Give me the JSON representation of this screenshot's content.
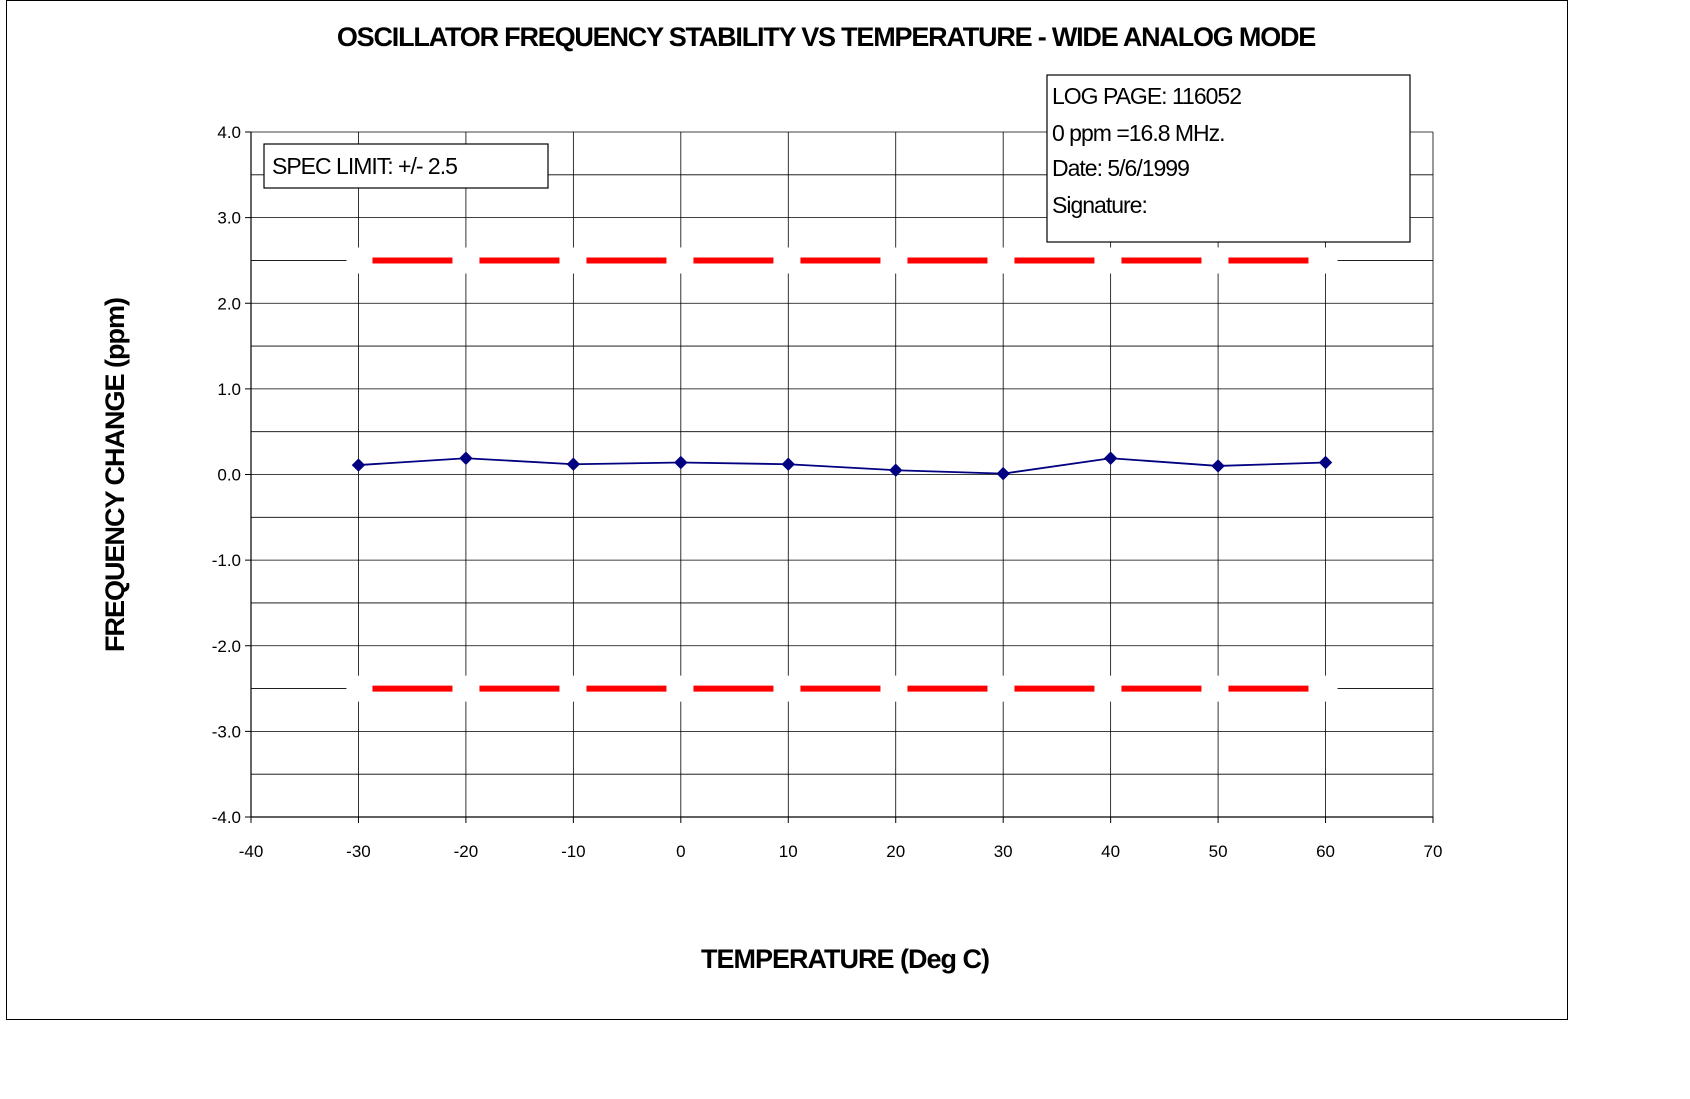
{
  "chart_data": {
    "type": "line",
    "title": "OSCILLATOR FREQUENCY STABILITY VS TEMPERATURE - WIDE ANALOG MODE",
    "xlabel": "TEMPERATURE (Deg C)",
    "ylabel": "FREQUENCY CHANGE (ppm)",
    "xlim": [
      -40,
      70
    ],
    "ylim": [
      -4.0,
      4.0
    ],
    "x_ticks": [
      -40,
      -30,
      -20,
      -10,
      0,
      10,
      20,
      30,
      40,
      50,
      60,
      70
    ],
    "y_ticks": [
      "4.0",
      "3.0",
      "2.0",
      "1.0",
      "0.0",
      "-1.0",
      "-2.0",
      "-3.0",
      "-4.0"
    ],
    "y_tick_values": [
      4,
      3,
      2,
      1,
      0,
      -1,
      -2,
      -3,
      -4
    ],
    "grid": true,
    "series": [
      {
        "color": "#000080",
        "marker": "diamond",
        "x": [
          -30,
          -20,
          -10,
          0,
          10,
          20,
          30,
          40,
          50,
          60
        ],
        "y": [
          0.11,
          0.19,
          0.12,
          0.14,
          0.12,
          0.05,
          0.01,
          0.19,
          0.1,
          0.14
        ]
      }
    ],
    "spec_limits": {
      "upper": 2.5,
      "lower": -2.5,
      "x_range": [
        -30,
        60
      ],
      "color": "#ff0000",
      "style": "dashed"
    },
    "annotations": {
      "spec_limit": "SPEC LIMIT: +/- 2.5",
      "log_page": "LOG PAGE:  116052",
      "zero_ppm": "0 ppm =16.8 MHz.",
      "date": "Date:  5/6/1999",
      "signature": "Signature:"
    }
  }
}
